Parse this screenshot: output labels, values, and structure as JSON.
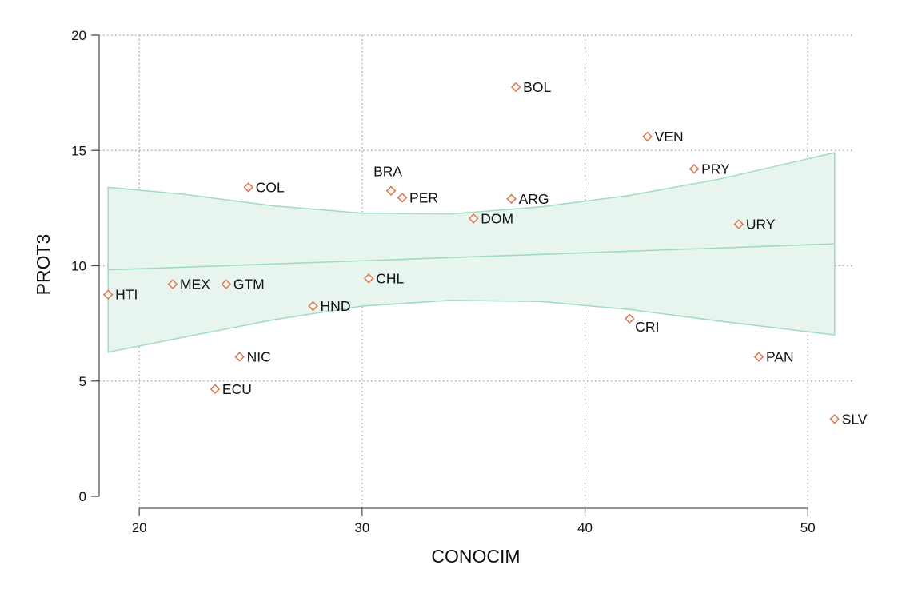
{
  "chart_data": {
    "type": "scatter",
    "title": "",
    "xlabel": "CONOCIM",
    "ylabel": "PROT3",
    "xlim": [
      18.2,
      52.0
    ],
    "ylim": [
      0,
      20
    ],
    "xticks": [
      20,
      30,
      40,
      50
    ],
    "yticks": [
      0,
      5,
      10,
      15,
      20
    ],
    "grid": true,
    "legend": "none",
    "colors": {
      "marker": "#e07a52",
      "band_fill": "#e8f5ee",
      "band_stroke": "#9fdcbf"
    },
    "points": [
      {
        "label": "HTI",
        "x": 18.6,
        "y": 8.75
      },
      {
        "label": "MEX",
        "x": 21.5,
        "y": 9.2
      },
      {
        "label": "GTM",
        "x": 23.9,
        "y": 9.2
      },
      {
        "label": "COL",
        "x": 24.9,
        "y": 13.4
      },
      {
        "label": "NIC",
        "x": 24.5,
        "y": 6.05
      },
      {
        "label": "ECU",
        "x": 23.4,
        "y": 4.65
      },
      {
        "label": "HND",
        "x": 27.8,
        "y": 8.25
      },
      {
        "label": "CHL",
        "x": 30.3,
        "y": 9.45
      },
      {
        "label": "BRA",
        "x": 31.3,
        "y": 13.25
      },
      {
        "label": "PER",
        "x": 31.8,
        "y": 12.95
      },
      {
        "label": "DOM",
        "x": 35.0,
        "y": 12.05
      },
      {
        "label": "ARG",
        "x": 36.7,
        "y": 12.9
      },
      {
        "label": "BOL",
        "x": 36.9,
        "y": 17.75
      },
      {
        "label": "CRI",
        "x": 42.0,
        "y": 7.7
      },
      {
        "label": "VEN",
        "x": 42.8,
        "y": 15.6
      },
      {
        "label": "PRY",
        "x": 44.9,
        "y": 14.2
      },
      {
        "label": "URY",
        "x": 46.9,
        "y": 11.8
      },
      {
        "label": "PAN",
        "x": 47.8,
        "y": 6.05
      },
      {
        "label": "SLV",
        "x": 51.2,
        "y": 3.35
      }
    ],
    "fit_line": [
      {
        "x": 18.6,
        "y": 9.82
      },
      {
        "x": 51.2,
        "y": 10.95
      }
    ],
    "ci_upper": [
      {
        "x": 18.6,
        "y": 13.4
      },
      {
        "x": 22.0,
        "y": 13.1
      },
      {
        "x": 26.0,
        "y": 12.6
      },
      {
        "x": 30.0,
        "y": 12.28
      },
      {
        "x": 34.0,
        "y": 12.25
      },
      {
        "x": 38.0,
        "y": 12.55
      },
      {
        "x": 42.0,
        "y": 13.05
      },
      {
        "x": 46.0,
        "y": 13.75
      },
      {
        "x": 51.2,
        "y": 14.9
      }
    ],
    "ci_lower": [
      {
        "x": 18.6,
        "y": 6.25
      },
      {
        "x": 22.0,
        "y": 6.9
      },
      {
        "x": 26.0,
        "y": 7.65
      },
      {
        "x": 30.0,
        "y": 8.25
      },
      {
        "x": 34.0,
        "y": 8.5
      },
      {
        "x": 38.0,
        "y": 8.45
      },
      {
        "x": 42.0,
        "y": 8.1
      },
      {
        "x": 46.0,
        "y": 7.6
      },
      {
        "x": 51.2,
        "y": 7.0
      }
    ]
  }
}
